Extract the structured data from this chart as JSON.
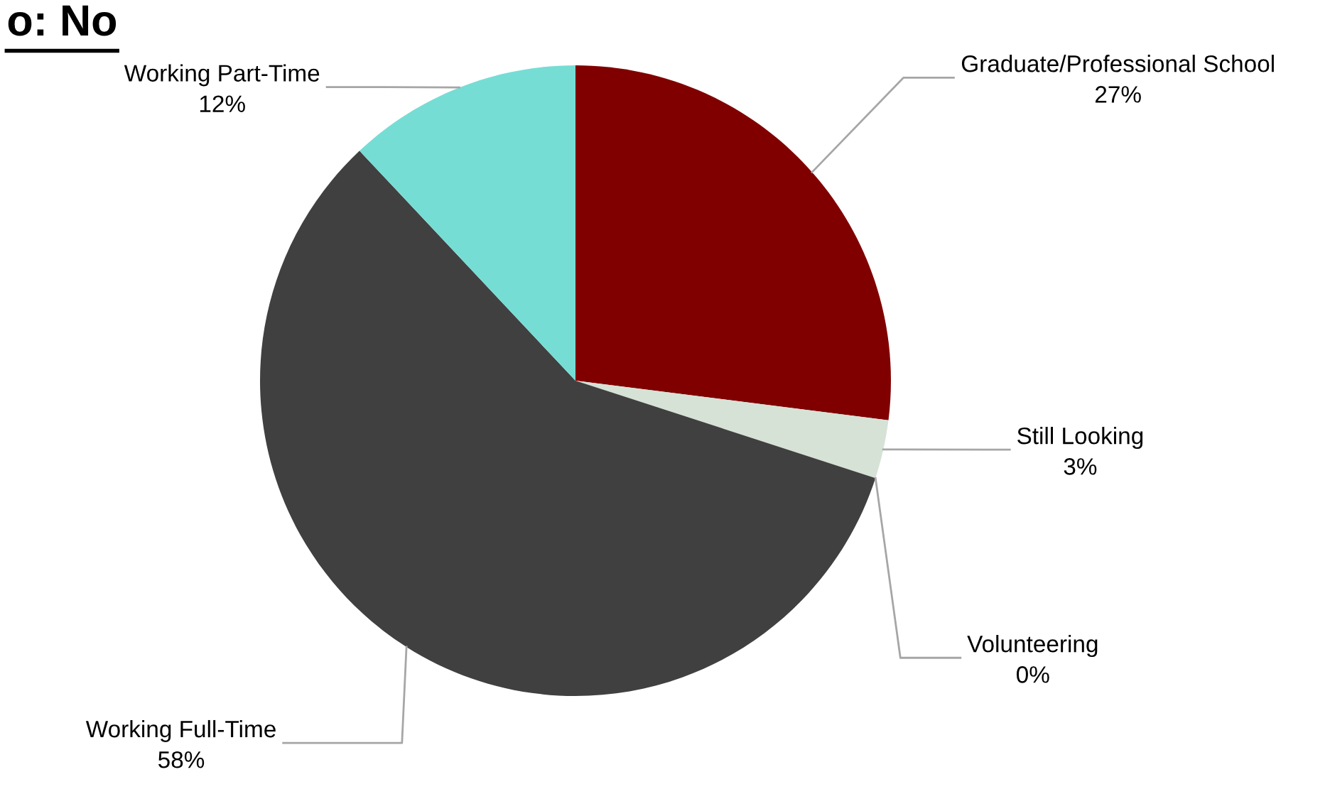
{
  "chart_data": {
    "type": "pie",
    "title": "o: No",
    "categories": [
      "Graduate/Professional School",
      "Still Looking",
      "Volunteering",
      "Working Full-Time",
      "Working Part-Time"
    ],
    "values": [
      27,
      3,
      0,
      58,
      12
    ],
    "colors": [
      "#800000",
      "#d6e2d6",
      "#b0b0b0",
      "#404040",
      "#76ddd5"
    ],
    "value_labels": [
      "27%",
      "3%",
      "0%",
      "58%",
      "12%"
    ],
    "legend": false
  }
}
